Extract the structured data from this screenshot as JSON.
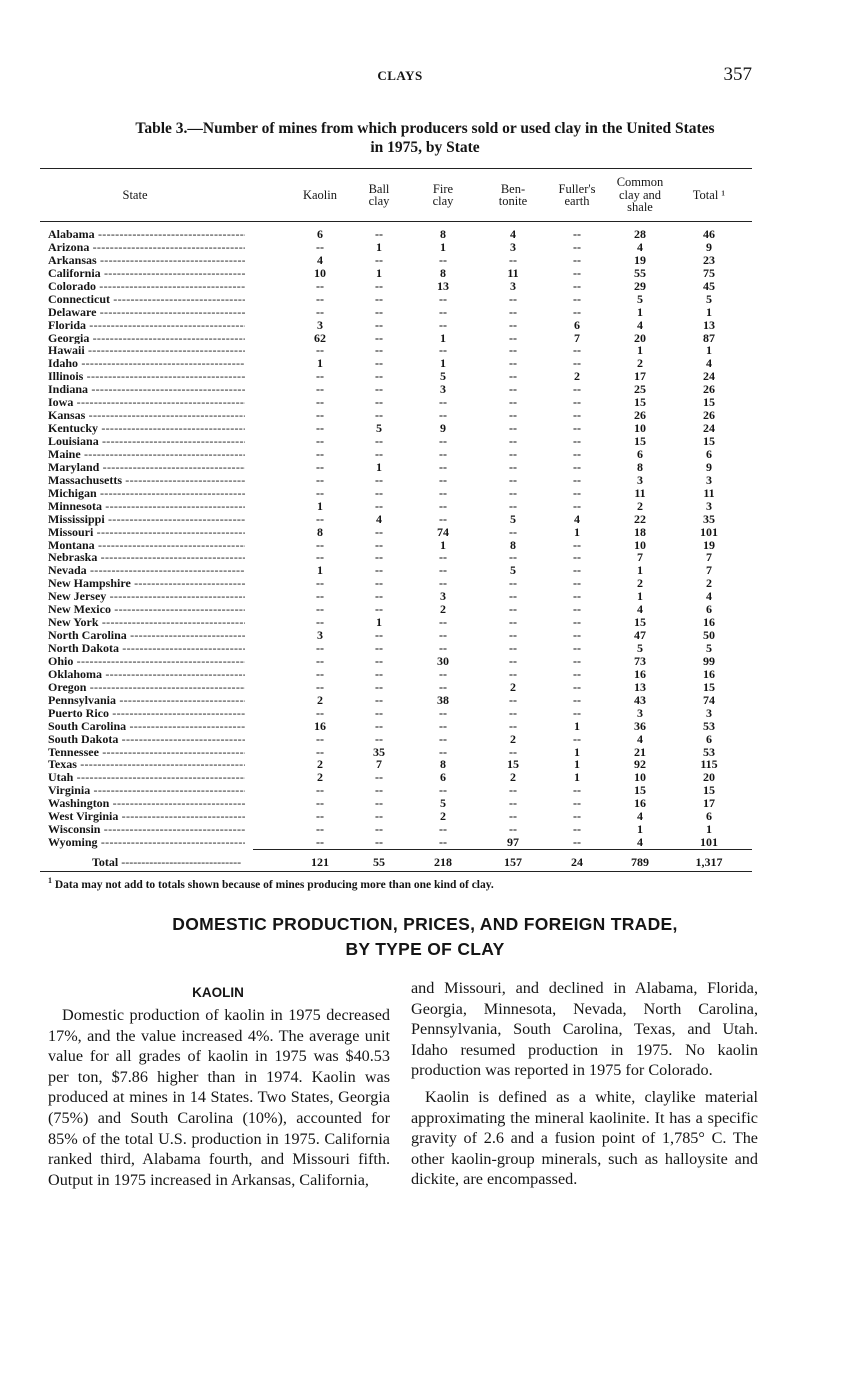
{
  "header": {
    "running_title": "CLAYS",
    "page_number": "357"
  },
  "table": {
    "title_line1": "Table 3.—Number of mines from which producers sold or used clay in the United States",
    "title_line2": "in 1975, by State",
    "columns": [
      [
        "State"
      ],
      [
        "Kaolin"
      ],
      [
        "Ball",
        "clay"
      ],
      [
        "Fire",
        "clay"
      ],
      [
        "Ben-",
        "tonite"
      ],
      [
        "Fuller's",
        "earth"
      ],
      [
        "Common",
        "clay and",
        "shale"
      ],
      [
        "Total ¹"
      ]
    ],
    "rows": [
      [
        "Alabama",
        "6",
        "--",
        "8",
        "4",
        "--",
        "28",
        "46"
      ],
      [
        "Arizona",
        "--",
        "1",
        "1",
        "3",
        "--",
        "4",
        "9"
      ],
      [
        "Arkansas",
        "4",
        "--",
        "--",
        "--",
        "--",
        "19",
        "23"
      ],
      [
        "California",
        "10",
        "1",
        "8",
        "11",
        "--",
        "55",
        "75"
      ],
      [
        "Colorado",
        "--",
        "--",
        "13",
        "3",
        "--",
        "29",
        "45"
      ],
      [
        "Connecticut",
        "--",
        "--",
        "--",
        "--",
        "--",
        "5",
        "5"
      ],
      [
        "Delaware",
        "--",
        "--",
        "--",
        "--",
        "--",
        "1",
        "1"
      ],
      [
        "Florida",
        "3",
        "--",
        "--",
        "--",
        "6",
        "4",
        "13"
      ],
      [
        "Georgia",
        "62",
        "--",
        "1",
        "--",
        "7",
        "20",
        "87"
      ],
      [
        "Hawaii",
        "--",
        "--",
        "--",
        "--",
        "--",
        "1",
        "1"
      ],
      [
        "Idaho",
        "1",
        "--",
        "1",
        "--",
        "--",
        "2",
        "4"
      ],
      [
        "Illinois",
        "--",
        "--",
        "5",
        "--",
        "2",
        "17",
        "24"
      ],
      [
        "Indiana",
        "--",
        "--",
        "3",
        "--",
        "--",
        "25",
        "26"
      ],
      [
        "Iowa",
        "--",
        "--",
        "--",
        "--",
        "--",
        "15",
        "15"
      ],
      [
        "Kansas",
        "--",
        "--",
        "--",
        "--",
        "--",
        "26",
        "26"
      ],
      [
        "Kentucky",
        "--",
        "5",
        "9",
        "--",
        "--",
        "10",
        "24"
      ],
      [
        "Louisiana",
        "--",
        "--",
        "--",
        "--",
        "--",
        "15",
        "15"
      ],
      [
        "Maine",
        "--",
        "--",
        "--",
        "--",
        "--",
        "6",
        "6"
      ],
      [
        "Maryland",
        "--",
        "1",
        "--",
        "--",
        "--",
        "8",
        "9"
      ],
      [
        "Massachusetts",
        "--",
        "--",
        "--",
        "--",
        "--",
        "3",
        "3"
      ],
      [
        "Michigan",
        "--",
        "--",
        "--",
        "--",
        "--",
        "11",
        "11"
      ],
      [
        "Minnesota",
        "1",
        "--",
        "--",
        "--",
        "--",
        "2",
        "3"
      ],
      [
        "Mississippi",
        "--",
        "4",
        "--",
        "5",
        "4",
        "22",
        "35"
      ],
      [
        "Missouri",
        "8",
        "--",
        "74",
        "--",
        "1",
        "18",
        "101"
      ],
      [
        "Montana",
        "--",
        "--",
        "1",
        "8",
        "--",
        "10",
        "19"
      ],
      [
        "Nebraska",
        "--",
        "--",
        "--",
        "--",
        "--",
        "7",
        "7"
      ],
      [
        "Nevada",
        "1",
        "--",
        "--",
        "5",
        "--",
        "1",
        "7"
      ],
      [
        "New Hampshire",
        "--",
        "--",
        "--",
        "--",
        "--",
        "2",
        "2"
      ],
      [
        "New Jersey",
        "--",
        "--",
        "3",
        "--",
        "--",
        "1",
        "4"
      ],
      [
        "New Mexico",
        "--",
        "--",
        "2",
        "--",
        "--",
        "4",
        "6"
      ],
      [
        "New York",
        "--",
        "1",
        "--",
        "--",
        "--",
        "15",
        "16"
      ],
      [
        "North Carolina",
        "3",
        "--",
        "--",
        "--",
        "--",
        "47",
        "50"
      ],
      [
        "North Dakota",
        "--",
        "--",
        "--",
        "--",
        "--",
        "5",
        "5"
      ],
      [
        "Ohio",
        "--",
        "--",
        "30",
        "--",
        "--",
        "73",
        "99"
      ],
      [
        "Oklahoma",
        "--",
        "--",
        "--",
        "--",
        "--",
        "16",
        "16"
      ],
      [
        "Oregon",
        "--",
        "--",
        "--",
        "2",
        "--",
        "13",
        "15"
      ],
      [
        "Pennsylvania",
        "2",
        "--",
        "38",
        "--",
        "--",
        "43",
        "74"
      ],
      [
        "Puerto Rico",
        "--",
        "--",
        "--",
        "--",
        "--",
        "3",
        "3"
      ],
      [
        "South Carolina",
        "16",
        "--",
        "--",
        "--",
        "1",
        "36",
        "53"
      ],
      [
        "South Dakota",
        "--",
        "--",
        "--",
        "2",
        "--",
        "4",
        "6"
      ],
      [
        "Tennessee",
        "--",
        "35",
        "--",
        "--",
        "1",
        "21",
        "53"
      ],
      [
        "Texas",
        "2",
        "7",
        "8",
        "15",
        "1",
        "92",
        "115"
      ],
      [
        "Utah",
        "2",
        "--",
        "6",
        "2",
        "1",
        "10",
        "20"
      ],
      [
        "Virginia",
        "--",
        "--",
        "--",
        "--",
        "--",
        "15",
        "15"
      ],
      [
        "Washington",
        "--",
        "--",
        "5",
        "--",
        "--",
        "16",
        "17"
      ],
      [
        "West Virginia",
        "--",
        "--",
        "2",
        "--",
        "--",
        "4",
        "6"
      ],
      [
        "Wisconsin",
        "--",
        "--",
        "--",
        "--",
        "--",
        "1",
        "1"
      ],
      [
        "Wyoming",
        "--",
        "--",
        "--",
        "97",
        "--",
        "4",
        "101"
      ]
    ],
    "total": [
      "Total",
      "121",
      "55",
      "218",
      "157",
      "24",
      "789",
      "1,317"
    ],
    "footnote_mark": "1",
    "footnote": "Data may not add to totals shown because of mines producing more than one kind of clay."
  },
  "section": {
    "heading_line1": "DOMESTIC PRODUCTION, PRICES, AND FOREIGN TRADE,",
    "heading_line2": "BY TYPE OF CLAY",
    "subheading": "KAOLIN",
    "left_column": "Domestic production of kaolin in 1975 decreased 17%, and the value increased 4%. The average unit value for all grades of kaolin in 1975 was $40.53 per ton, $7.86 higher than in 1974. Kaolin was produced at mines in 14 States. Two States, Georgia (75%) and South Carolina (10%), accounted for 85% of the total U.S. production in 1975. California ranked third, Alabama fourth, and Missouri fifth. Output in 1975 increased in Arkansas, California,",
    "right_column_cont": "and Missouri, and declined in Alabama, Florida, Georgia, Minnesota, Nevada, North Carolina, Pennsylvania, South Carolina, Texas, and Utah. Idaho resumed production in 1975. No kaolin production was reported in 1975 for Colorado.",
    "right_column_p2": "Kaolin is defined as a white, claylike material approximating the mineral kaolinite. It has a specific gravity of 2.6 and a fusion point of 1,785° C. The other kaolin-group minerals, such as halloysite and dickite, are encompassed."
  }
}
